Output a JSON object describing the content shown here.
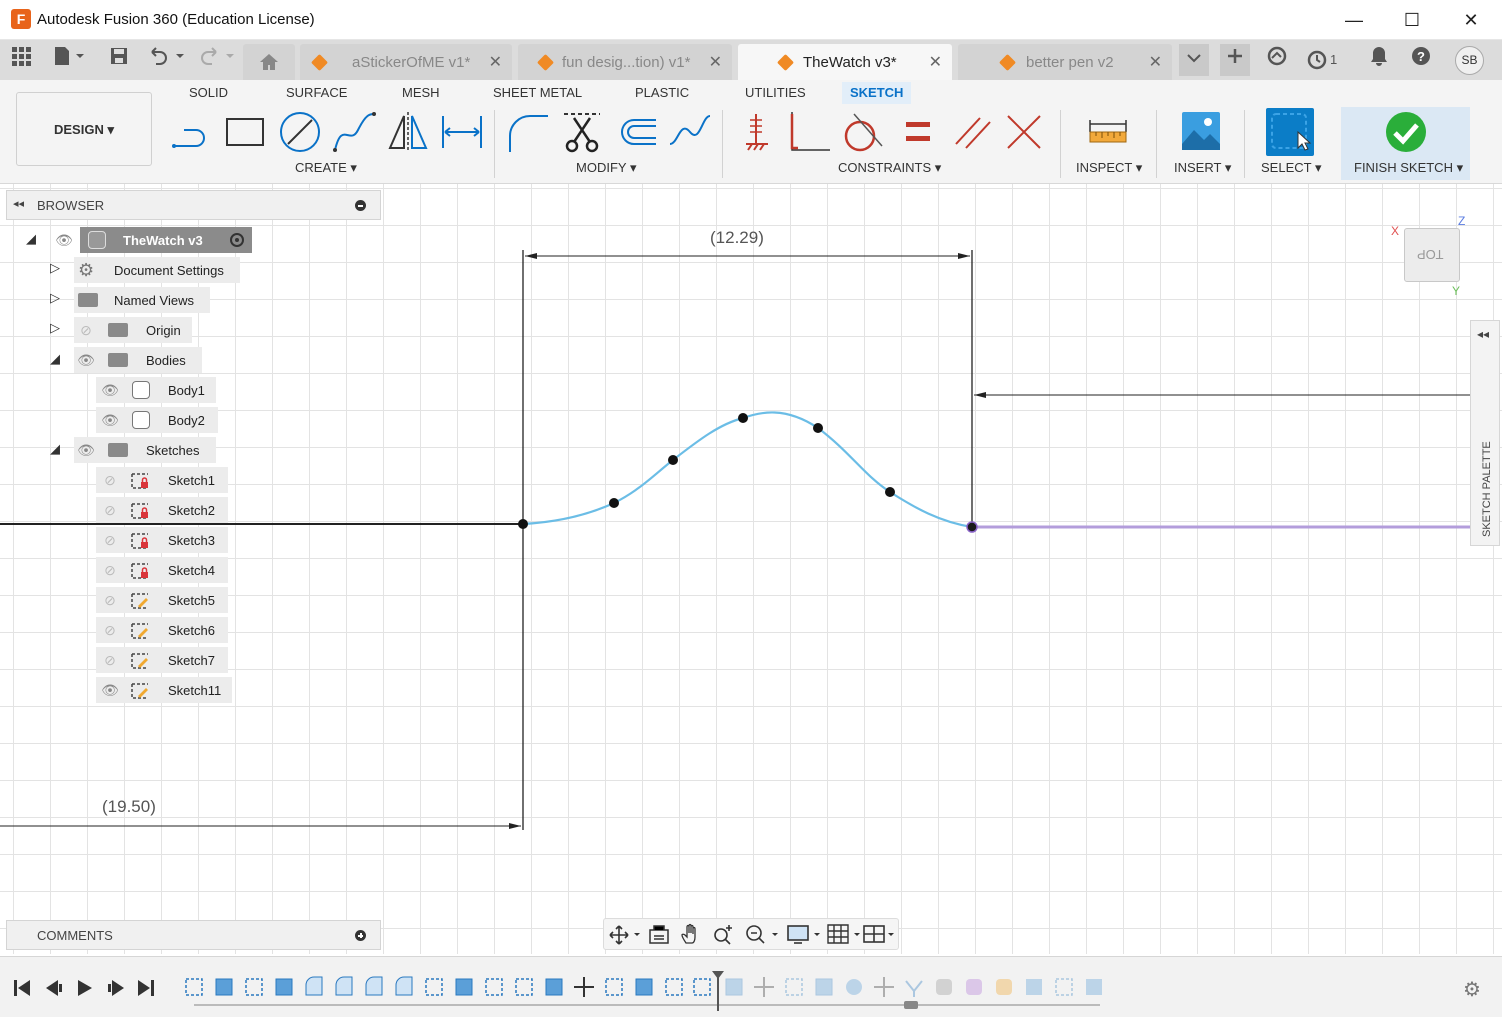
{
  "window": {
    "title": "Autodesk Fusion 360 (Education License)",
    "logo_letter": "F",
    "minimize": "—",
    "maximize": "☐",
    "close": "✕"
  },
  "tabs": [
    {
      "label": "aStickerOfME v1*",
      "close": "✕"
    },
    {
      "label": "fun desig...tion) v1*",
      "close": "✕"
    },
    {
      "label": "TheWatch v3*",
      "close": "✕",
      "active": true
    },
    {
      "label": "better pen v2",
      "close": "✕"
    }
  ],
  "tabstrip_right": {
    "jobs_count": "1",
    "user_initials": "SB"
  },
  "ribbon": {
    "workspace": "DESIGN",
    "tabs": [
      "SOLID",
      "SURFACE",
      "MESH",
      "SHEET METAL",
      "PLASTIC",
      "UTILITIES",
      "SKETCH"
    ],
    "active_tab": "SKETCH",
    "groups": {
      "create": "CREATE",
      "modify": "MODIFY",
      "constraints": "CONSTRAINTS",
      "inspect": "INSPECT",
      "insert": "INSERT",
      "select": "SELECT",
      "finish": "FINISH SKETCH"
    },
    "dropdown_arrow": "▾"
  },
  "browser": {
    "title": "BROWSER",
    "root": "TheWatch v3",
    "items": {
      "document_settings": "Document Settings",
      "named_views": "Named Views",
      "origin": "Origin",
      "bodies": "Bodies",
      "body1": "Body1",
      "body2": "Body2",
      "sketches": "Sketches",
      "sketch_list": [
        "Sketch1",
        "Sketch2",
        "Sketch3",
        "Sketch4",
        "Sketch5",
        "Sketch6",
        "Sketch7",
        "Sketch11"
      ]
    }
  },
  "canvas": {
    "dimension_top": "(12.29)",
    "dimension_bottom": "(19.50)",
    "curve_color": "#6bbde6",
    "line_color": "#222222",
    "purple_line_color": "#b39ddb"
  },
  "viewcube": {
    "face": "TOP",
    "axis_x": "X",
    "axis_y": "Y",
    "axis_z": "Z"
  },
  "sketch_palette": "SKETCH PALETTE",
  "comments": {
    "title": "COMMENTS"
  },
  "colors": {
    "accent": "#0a72c8",
    "finish_green": "#2aae3a",
    "select_blue": "#0b7dc7"
  }
}
